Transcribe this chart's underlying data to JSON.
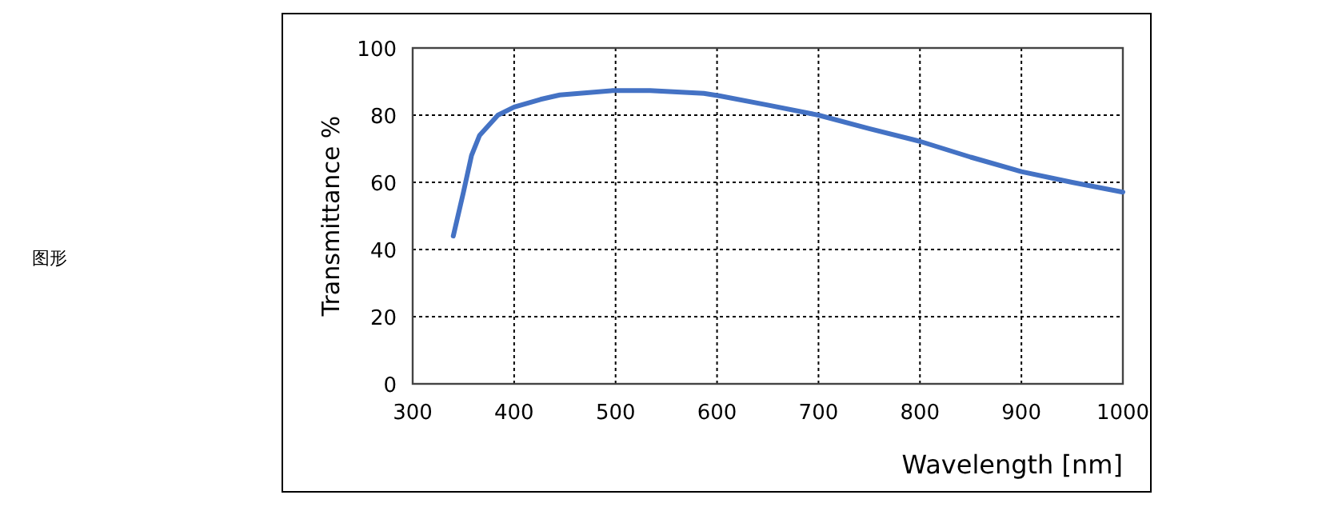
{
  "chart_data": {
    "type": "line",
    "xlabel": "Wavelength [nm]",
    "ylabel": "Transmittance %",
    "annotations": [
      "图形"
    ],
    "xlim": [
      300,
      1000
    ],
    "xticks": [
      300,
      400,
      500,
      600,
      700,
      800,
      900,
      1000
    ],
    "ylim": [
      0,
      100
    ],
    "yticks": [
      0,
      20,
      40,
      60,
      80,
      100
    ],
    "grid": true,
    "series": [
      {
        "color": "#4472c4",
        "x": [
          340,
          350,
          358,
          366,
          384,
          400,
          426,
          445,
          497,
          534,
          587,
          603,
          650,
          700,
          750,
          800,
          850,
          900,
          950,
          1000
        ],
        "values": [
          44,
          57,
          68,
          74,
          80,
          82.4,
          84.7,
          86,
          87.3,
          87.3,
          86.5,
          85.7,
          83,
          80,
          76,
          72.2,
          67.5,
          63.2,
          60,
          57.1
        ]
      }
    ]
  }
}
